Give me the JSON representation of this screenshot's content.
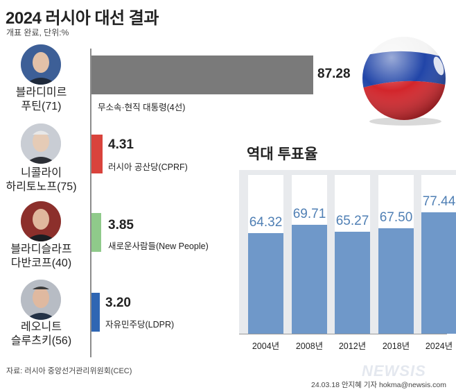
{
  "header": {
    "title": "2024 러시아 대선 결과",
    "subtitle": "개표 완료, 단위:%"
  },
  "chart_data": [
    {
      "type": "bar",
      "title": "",
      "categories": [
        "블라디미르 푸틴(71)",
        "니콜라이 하리토노프(75)",
        "블라디슬라프 다반코프(40)",
        "레오니트 슬루츠키(56)"
      ],
      "values": [
        87.28,
        4.31,
        3.85,
        3.2
      ],
      "parties": [
        "무소속·현직 대통령(4선)",
        "러시아 공산당(CPRF)",
        "새로운사람들(New People)",
        "자유민주당(LDPR)"
      ],
      "colors": [
        "#7a7a7a",
        "#d9433c",
        "#8fca8a",
        "#2f66b3"
      ]
    },
    {
      "type": "bar",
      "title": "역대 투표율",
      "categories": [
        "2004년",
        "2008년",
        "2012년",
        "2018년",
        "2024년"
      ],
      "values": [
        64.32,
        69.71,
        65.27,
        67.5,
        77.44
      ],
      "ylim": [
        0,
        100
      ],
      "color": "#6f98c9"
    }
  ],
  "candidates": [
    {
      "name_line1": "블라디미르",
      "name_line2": "푸틴(71)",
      "value": "87.28",
      "party": "무소속·현직 대통령(4선)"
    },
    {
      "name_line1": "니콜라이",
      "name_line2": "하리토노프(75)",
      "value": "4.31",
      "party": "러시아 공산당(CPRF)"
    },
    {
      "name_line1": "블라디슬라프",
      "name_line2": "다반코프(40)",
      "value": "3.85",
      "party": "새로운사람들(New People)"
    },
    {
      "name_line1": "레오니트",
      "name_line2": "슬루츠키(56)",
      "value": "3.20",
      "party": "자유민주당(LDPR)"
    }
  ],
  "turnout": {
    "title": "역대 투표율",
    "years": [
      "2004년",
      "2008년",
      "2012년",
      "2018년",
      "2024년"
    ],
    "values": [
      "64.32",
      "69.71",
      "65.27",
      "67.50",
      "77.44"
    ]
  },
  "footer": {
    "source": "자료: 러시아 중앙선거관리위원회(CEC)",
    "credit": "24.03.18 안지혜 기자 hokma@newsis.com",
    "logo": "NEWSIS"
  }
}
